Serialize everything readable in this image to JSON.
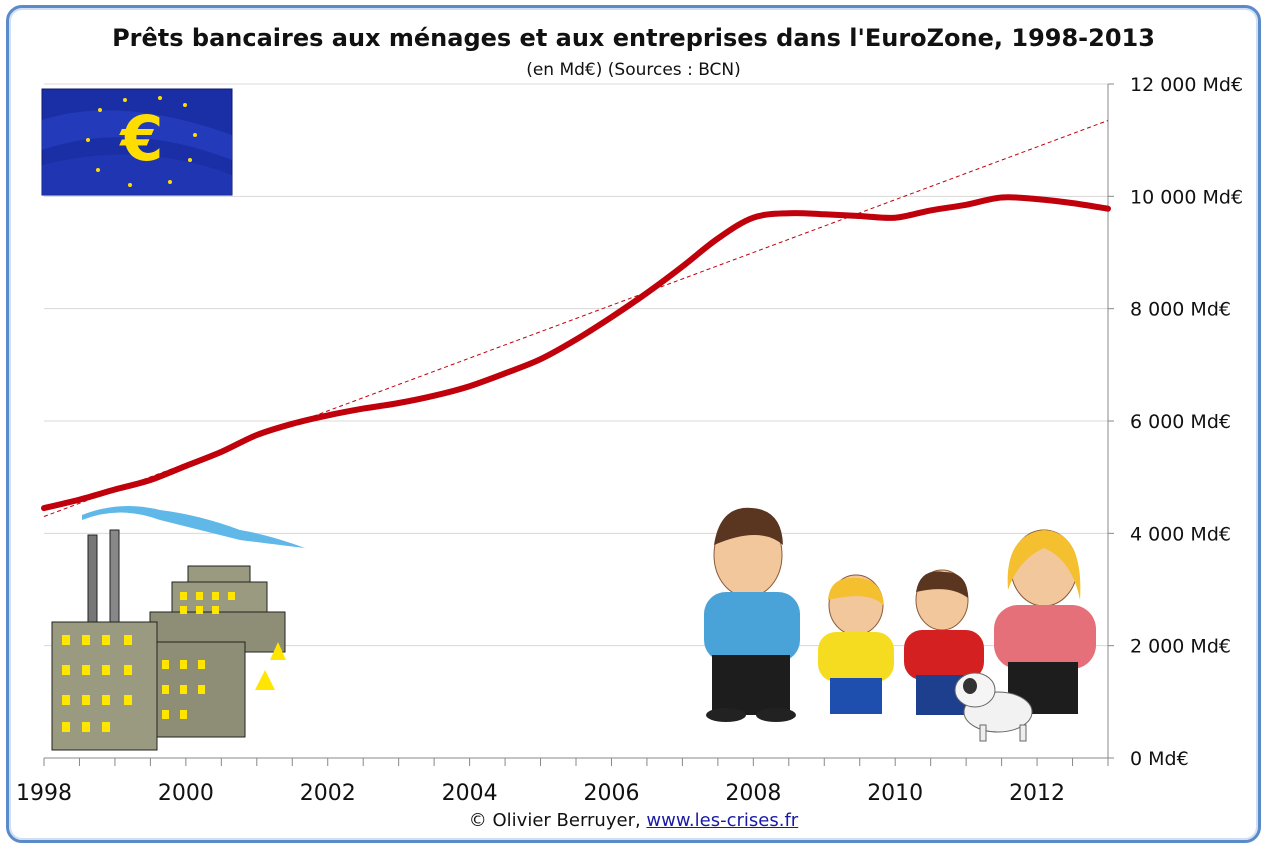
{
  "chart_data": {
    "type": "line",
    "title": "Prêts bancaires aux ménages et aux entreprises dans l'EuroZone, 1998-2013",
    "subtitle": "(en Md€) (Sources : BCN)",
    "xlabel": "",
    "ylabel": "",
    "x_ticks": [
      "1998",
      "2000",
      "2002",
      "2004",
      "2006",
      "2008",
      "2010",
      "2012"
    ],
    "y_ticks": [
      "0 Md€",
      "2 000 Md€",
      "4 000 Md€",
      "6 000 Md€",
      "8 000 Md€",
      "10 000 Md€",
      "12 000 Md€"
    ],
    "xlim": [
      1998,
      2013
    ],
    "ylim": [
      0,
      12000
    ],
    "grid": true,
    "series": [
      {
        "color": "#c0000b",
        "x": [
          1998,
          1998.5,
          1999,
          1999.5,
          2000,
          2000.5,
          2001,
          2001.5,
          2002,
          2002.5,
          2003,
          2003.5,
          2004,
          2004.5,
          2005,
          2005.5,
          2006,
          2006.5,
          2007,
          2007.5,
          2008,
          2008.5,
          2009,
          2009.5,
          2010,
          2010.5,
          2011,
          2011.5,
          2012,
          2012.5,
          2013
        ],
        "values": [
          4450,
          4600,
          4780,
          4950,
          5200,
          5450,
          5750,
          5950,
          6100,
          6220,
          6320,
          6450,
          6620,
          6850,
          7100,
          7450,
          7850,
          8280,
          8750,
          9250,
          9620,
          9700,
          9680,
          9650,
          9620,
          9750,
          9850,
          9980,
          9950,
          9880,
          9780
        ]
      },
      {
        "color": "#c0000b",
        "dashed": true,
        "x": [
          1998,
          2013
        ],
        "values": [
          4300,
          11350
        ]
      }
    ]
  },
  "footer": {
    "copyright": "© Olivier Berruyer,",
    "link": "www.les-crises.fr"
  },
  "decor": {
    "flag_symbol": "€",
    "flag_color": "#1a2fa6",
    "symbol_color": "#ffdd00"
  }
}
